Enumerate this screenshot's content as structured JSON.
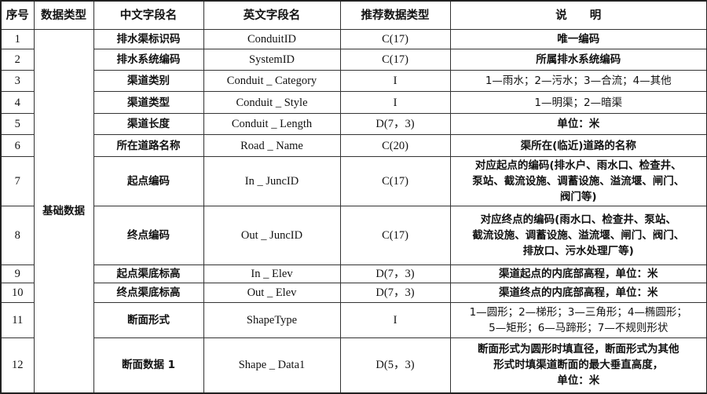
{
  "headers": [
    "序号",
    "数据类型",
    "中文字段名",
    "英文字段名",
    "推荐数据类型",
    "说　　明"
  ],
  "group_label": "基础数据",
  "rows": [
    {
      "no": "1",
      "cn": "排水渠标识码",
      "en": "ConduitID",
      "type": "C(17)",
      "desc": [
        "唯一编码"
      ]
    },
    {
      "no": "2",
      "cn": "排水系统编码",
      "en": "SystemID",
      "type": "C(17)",
      "desc": [
        "所属排水系统编码"
      ]
    },
    {
      "no": "3",
      "cn": "渠道类别",
      "en": "Conduit _ Category",
      "type": "I",
      "desc": [
        "1—雨水；2—污水；3—合流；4—其他"
      ]
    },
    {
      "no": "4",
      "cn": "渠道类型",
      "en": "Conduit _ Style",
      "type": "I",
      "desc": [
        "1—明渠；2—暗渠"
      ]
    },
    {
      "no": "5",
      "cn": "渠道长度",
      "en": "Conduit _ Length",
      "type": "D(7，3)",
      "desc": [
        "单位：米"
      ]
    },
    {
      "no": "6",
      "cn": "所在道路名称",
      "en": "Road _ Name",
      "type": "C(20)",
      "desc": [
        "渠所在(临近)道路的名称"
      ]
    },
    {
      "no": "7",
      "cn": "起点编码",
      "en": "In _ JuncID",
      "type": "C(17)",
      "desc": [
        "对应起点的编码(排水户、雨水口、检查井、",
        "泵站、截流设施、调蓄设施、溢流堰、闸门、",
        "阀门等)"
      ]
    },
    {
      "no": "8",
      "cn": "终点编码",
      "en": "Out _ JuncID",
      "type": "C(17)",
      "desc": [
        "对应终点的编码(雨水口、检查井、泵站、",
        "截流设施、调蓄设施、溢流堰、闸门、阀门、",
        "排放口、污水处理厂等)"
      ]
    },
    {
      "no": "9",
      "cn": "起点渠底标高",
      "en": "In _ Elev",
      "type": "D(7，3)",
      "desc": [
        "渠道起点的内底部高程，单位：米"
      ]
    },
    {
      "no": "10",
      "cn": "终点渠底标高",
      "en": "Out _ Elev",
      "type": "D(7，3)",
      "desc": [
        "渠道终点的内底部高程，单位：米"
      ]
    },
    {
      "no": "11",
      "cn": "断面形式",
      "en": "ShapeType",
      "type": "I",
      "desc": [
        "1—圆形；2—梯形；3—三角形；4—椭圆形；",
        "5—矩形；6—马蹄形；7—不规则形状"
      ]
    },
    {
      "no": "12",
      "cn": "断面数据 1",
      "en": "Shape _ Data1",
      "type": "D(5，3)",
      "desc": [
        "断面形式为圆形时填直径，断面形式为其他",
        "形式时填渠道断面的最大垂直高度，",
        "单位：米"
      ]
    }
  ]
}
